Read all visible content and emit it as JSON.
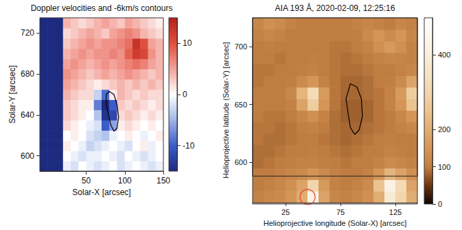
{
  "chart_data": [
    {
      "type": "heatmap",
      "title": "Doppler velocities and -6km/s contours",
      "xlabel": "Solar-X [arcsec]",
      "ylabel": "Solar-Y [arcsec]",
      "xlim": [
        -10,
        150
      ],
      "xticks": [
        50,
        100,
        150
      ],
      "ylim": [
        585,
        735
      ],
      "yticks": [
        600,
        640,
        680,
        720
      ],
      "grid": false,
      "x_edges": [
        -10,
        0,
        10,
        20,
        30,
        40,
        50,
        60,
        70,
        80,
        90,
        100,
        110,
        120,
        130,
        140,
        150
      ],
      "y_edges": [
        585,
        595,
        605,
        615,
        625,
        635,
        645,
        655,
        665,
        675,
        685,
        695,
        705,
        715,
        725,
        735
      ],
      "cells": [
        [
          -15,
          -15,
          -15,
          -1,
          -2,
          0,
          -1,
          -2,
          -1,
          0,
          -2,
          -1,
          0,
          -1,
          -2,
          -1
        ],
        [
          -15,
          -15,
          -15,
          0,
          -1,
          -2,
          -1,
          -1,
          0,
          -1,
          -2,
          0,
          -1,
          -2,
          -1,
          0
        ],
        [
          -15,
          -15,
          -15,
          1,
          0,
          -1,
          -3,
          -2,
          -1,
          0,
          -1,
          -2,
          0,
          1,
          -1,
          0
        ],
        [
          -15,
          -15,
          -15,
          0,
          1,
          0,
          -2,
          -3,
          -4,
          -1,
          0,
          1,
          0,
          -1,
          0,
          1
        ],
        [
          -15,
          -15,
          -15,
          2,
          1,
          0,
          -1,
          -2,
          -10,
          -6,
          1,
          2,
          1,
          0,
          1,
          0
        ],
        [
          -15,
          -15,
          -15,
          3,
          2,
          1,
          0,
          -4,
          -14,
          -12,
          2,
          3,
          2,
          1,
          2,
          1
        ],
        [
          -15,
          -15,
          -15,
          3,
          2,
          1,
          1,
          -8,
          -15,
          -10,
          3,
          2,
          3,
          2,
          1,
          2
        ],
        [
          -15,
          -15,
          -15,
          4,
          3,
          2,
          2,
          -3,
          -9,
          1,
          4,
          3,
          2,
          3,
          2,
          2
        ],
        [
          -15,
          -15,
          -15,
          5,
          4,
          3,
          2,
          1,
          2,
          3,
          4,
          3,
          4,
          3,
          4,
          3
        ],
        [
          -15,
          -15,
          -15,
          6,
          5,
          4,
          3,
          4,
          5,
          4,
          5,
          6,
          5,
          4,
          3,
          4
        ],
        [
          -15,
          -15,
          -15,
          5,
          6,
          5,
          4,
          5,
          6,
          5,
          6,
          7,
          8,
          7,
          5,
          4
        ],
        [
          -15,
          -15,
          -15,
          4,
          5,
          6,
          5,
          6,
          6,
          7,
          6,
          9,
          12,
          11,
          6,
          4
        ],
        [
          -15,
          -15,
          -15,
          3,
          4,
          5,
          6,
          5,
          6,
          6,
          7,
          8,
          13,
          10,
          5,
          4
        ],
        [
          -15,
          -15,
          -15,
          2,
          3,
          4,
          5,
          4,
          3,
          5,
          6,
          7,
          6,
          4,
          3,
          2
        ],
        [
          -15,
          -15,
          -15,
          4,
          3,
          2,
          3,
          4,
          5,
          4,
          3,
          5,
          4,
          3,
          2,
          1
        ]
      ],
      "colorbar": {
        "range": [
          -15,
          15
        ],
        "ticks": [
          -10,
          0,
          10
        ]
      },
      "contour": {
        "x": [
          76,
          80,
          86,
          90,
          92,
          90,
          86,
          82,
          79,
          76,
          76
        ],
        "y": [
          660,
          663,
          660,
          650,
          638,
          627,
          624,
          630,
          640,
          650,
          660
        ],
        "color": "#000000"
      }
    },
    {
      "type": "heatmap",
      "title": "AIA 193 Å, 2020-02-09, 12:25:16",
      "xlabel": "Helioprojective longitude (Solar-X) [arcsec]",
      "ylabel": "Helioprojective latitude (Solar-Y) [arcsec]",
      "xlim": [
        -5,
        145
      ],
      "xticks": [
        25,
        75,
        125
      ],
      "ylim": [
        565,
        725
      ],
      "yticks": [
        600,
        650,
        700
      ],
      "grid": false,
      "x_edges": [
        -5,
        5,
        15,
        25,
        35,
        45,
        55,
        65,
        75,
        85,
        95,
        105,
        115,
        125,
        135,
        145
      ],
      "y_edges": [
        565,
        575,
        585,
        595,
        605,
        615,
        625,
        635,
        645,
        655,
        665,
        675,
        685,
        695,
        705,
        715,
        725
      ],
      "cells": [
        [
          110,
          120,
          130,
          150,
          200,
          420,
          180,
          120,
          110,
          120,
          140,
          200,
          380,
          300,
          200
        ],
        [
          100,
          110,
          120,
          140,
          180,
          300,
          160,
          110,
          100,
          110,
          130,
          250,
          420,
          320,
          180
        ],
        [
          100,
          100,
          110,
          120,
          130,
          150,
          130,
          110,
          100,
          100,
          110,
          150,
          220,
          180,
          140
        ],
        [
          90,
          95,
          100,
          105,
          110,
          110,
          105,
          100,
          95,
          100,
          100,
          110,
          130,
          120,
          110
        ],
        [
          90,
          90,
          95,
          100,
          100,
          105,
          100,
          95,
          90,
          95,
          100,
          100,
          110,
          105,
          100
        ],
        [
          95,
          90,
          90,
          95,
          100,
          100,
          95,
          90,
          85,
          90,
          95,
          100,
          105,
          100,
          100
        ],
        [
          95,
          95,
          90,
          95,
          105,
          110,
          100,
          90,
          85,
          85,
          90,
          95,
          100,
          110,
          120
        ],
        [
          100,
          95,
          95,
          100,
          120,
          140,
          110,
          90,
          80,
          80,
          85,
          95,
          100,
          120,
          150
        ],
        [
          100,
          100,
          100,
          110,
          180,
          280,
          150,
          95,
          80,
          80,
          85,
          95,
          110,
          150,
          250
        ],
        [
          100,
          100,
          100,
          120,
          220,
          320,
          160,
          95,
          85,
          85,
          90,
          95,
          110,
          160,
          280
        ],
        [
          95,
          100,
          100,
          105,
          130,
          150,
          110,
          95,
          85,
          85,
          90,
          100,
          105,
          130,
          180
        ],
        [
          95,
          95,
          100,
          100,
          105,
          110,
          100,
          95,
          90,
          90,
          95,
          100,
          100,
          110,
          120
        ],
        [
          100,
          100,
          95,
          100,
          100,
          105,
          100,
          95,
          90,
          95,
          100,
          110,
          120,
          115,
          110
        ],
        [
          100,
          105,
          100,
          100,
          100,
          100,
          100,
          95,
          95,
          100,
          110,
          140,
          160,
          140,
          110
        ],
        [
          110,
          120,
          110,
          100,
          100,
          100,
          100,
          100,
          100,
          105,
          130,
          150,
          130,
          150,
          120
        ],
        [
          120,
          140,
          130,
          110,
          100,
          100,
          100,
          100,
          100,
          110,
          120,
          110,
          100,
          120,
          110
        ]
      ],
      "colorbar": {
        "range": [
          0,
          500
        ],
        "ticks": [
          0,
          100,
          200,
          400
        ]
      },
      "contour": {
        "x": [
          84,
          90,
          94,
          95,
          92,
          88,
          84,
          82,
          80,
          84
        ],
        "y": [
          668,
          665,
          655,
          640,
          628,
          624,
          630,
          642,
          655,
          668
        ],
        "color": "#000000"
      },
      "fov": {
        "x": [
          -5,
          145
        ],
        "y": [
          588,
          725
        ]
      },
      "circle": {
        "x": 45,
        "y": 570,
        "color": "#e03c28"
      }
    }
  ]
}
